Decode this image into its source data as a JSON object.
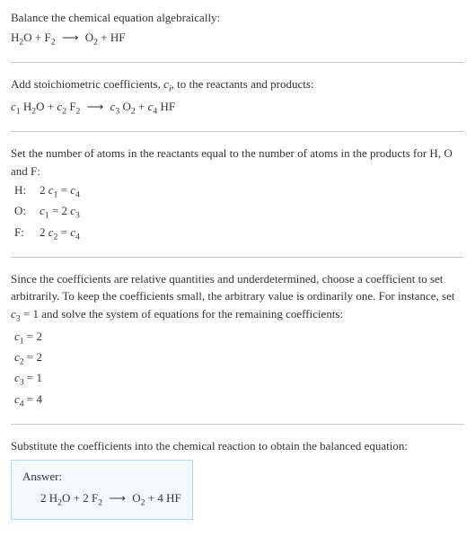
{
  "section1": {
    "intro": "Balance the chemical equation algebraically:",
    "lhs1": "H",
    "lhs1_sub": "2",
    "lhs2": "O + F",
    "lhs2_sub": "2",
    "arrow": "⟶",
    "rhs1": "O",
    "rhs1_sub": "2",
    "rhs2": " + HF"
  },
  "section2": {
    "intro_a": "Add stoichiometric coefficients, ",
    "c": "c",
    "i": "i",
    "intro_b": ", to the reactants and products:",
    "c1": "c",
    "c1s": "1",
    "t1": " H",
    "t1s": "2",
    "t2": "O + ",
    "c2": "c",
    "c2s": "2",
    "t3": " F",
    "t3s": "2",
    "arrow": "⟶",
    "c3": "c",
    "c3s": "3",
    "t4": " O",
    "t4s": "2",
    "t5": " + ",
    "c4": "c",
    "c4s": "4",
    "t6": " HF"
  },
  "section3": {
    "intro": "Set the number of atoms in the reactants equal to the number of atoms in the products for H, O and F:",
    "rows": [
      {
        "label": "H:",
        "lhs_coef": "2 ",
        "lhs_c": "c",
        "lhs_s": "1",
        "eq": " = ",
        "rhs_coef": "",
        "rhs_c": "c",
        "rhs_s": "4"
      },
      {
        "label": "O:",
        "lhs_coef": "",
        "lhs_c": "c",
        "lhs_s": "1",
        "eq": " = 2 ",
        "rhs_coef": "",
        "rhs_c": "c",
        "rhs_s": "3"
      },
      {
        "label": "F:",
        "lhs_coef": "2 ",
        "lhs_c": "c",
        "lhs_s": "2",
        "eq": " = ",
        "rhs_coef": "",
        "rhs_c": "c",
        "rhs_s": "4"
      }
    ]
  },
  "section4": {
    "intro_a": "Since the coefficients are relative quantities and underdetermined, choose a coefficient to set arbitrarily. To keep the coefficients small, the arbitrary value is ordinarily one. For instance, set ",
    "c3": "c",
    "c3s": "3",
    "intro_b": " = 1 and solve the system of equations for the remaining coefficients:",
    "coeffs": [
      {
        "c": "c",
        "s": "1",
        "val": " = 2"
      },
      {
        "c": "c",
        "s": "2",
        "val": " = 2"
      },
      {
        "c": "c",
        "s": "3",
        "val": " = 1"
      },
      {
        "c": "c",
        "s": "4",
        "val": " = 4"
      }
    ]
  },
  "section5": {
    "intro": "Substitute the coefficients into the chemical reaction to obtain the balanced equation:",
    "answer_label": "Answer:",
    "lhs1": "2 H",
    "lhs1_sub": "2",
    "lhs2": "O + 2 F",
    "lhs2_sub": "2",
    "arrow": "⟶",
    "rhs1": "O",
    "rhs1_sub": "2",
    "rhs2": " + 4 HF"
  },
  "colors": {
    "text": "#333333",
    "hr": "#cccccc",
    "box_border": "#b8d4e8",
    "box_bg": "#f4f9fc"
  }
}
